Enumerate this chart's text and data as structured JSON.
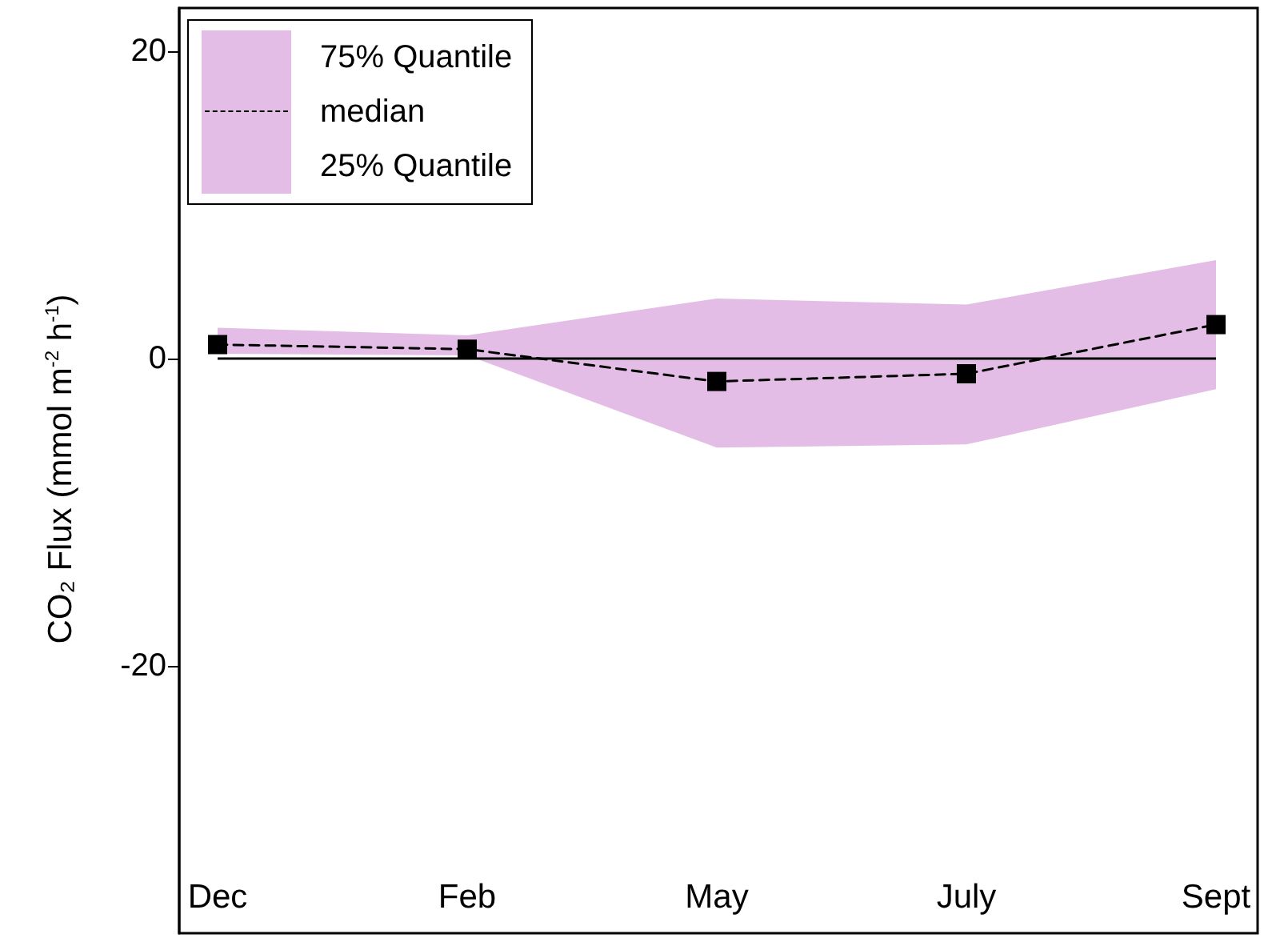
{
  "chart_data": {
    "type": "line",
    "ylabel": "CO₂ Flux (mmol m$^{-2}$ h$^{-1}$)",
    "categories": [
      "Dec",
      "Feb",
      "May",
      "July",
      "Sept"
    ],
    "series": [
      {
        "name": "median",
        "color": "#000000",
        "values": [
          0.9,
          0.6,
          -1.5,
          -1,
          2.2
        ],
        "upper": [
          2,
          1.5,
          3.9,
          3.5,
          6.4
        ],
        "lower": [
          0.3,
          0.2,
          -5.8,
          -5.6,
          -2
        ],
        "marker": "square",
        "line_style": "dashed"
      }
    ],
    "annotations": [
      "75% Quantile",
      "25% Quantile"
    ],
    "ylim": [
      -37.4,
      22.8
    ],
    "yticks": [
      -20,
      0,
      20
    ],
    "grid": false,
    "legend": "top left",
    "ref_lines": [
      {
        "axis": "y",
        "value": 0,
        "color": "#000000",
        "line_style": "solid"
      }
    ]
  }
}
